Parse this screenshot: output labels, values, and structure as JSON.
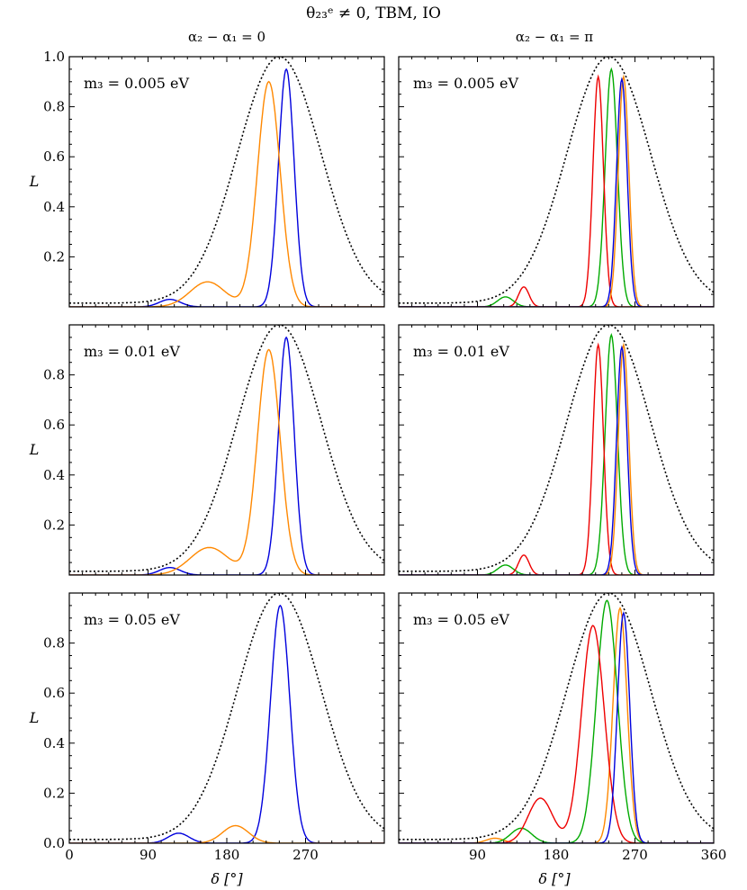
{
  "header": {
    "title": "θ₂₃ᵉ ≠ 0, TBM, IO",
    "col_titles": [
      "α₂ − α₁ = 0",
      "α₂ − α₁ = π"
    ]
  },
  "axes": {
    "xlabel": "δ [°]",
    "ylabel": "L"
  },
  "colors": {
    "envelope": "#000000",
    "blue": "#0000dd",
    "orange": "#ff8800",
    "green": "#00aa00",
    "red": "#ee0000"
  },
  "chart_data": [
    {
      "type": "line",
      "row": 0,
      "col": 0,
      "annotation": "m₃ = 0.005 eV",
      "xlim": [
        0,
        360
      ],
      "ylim": [
        0,
        1
      ],
      "xticks": [],
      "yticks": [
        "0.2",
        "0.4",
        "0.6",
        "0.8",
        "1.0"
      ],
      "series": [
        {
          "color": "blue",
          "peaks": [
            [
              115,
              0.03,
              12
            ],
            [
              248,
              0.95,
              9
            ]
          ]
        },
        {
          "color": "orange",
          "peaks": [
            [
              158,
              0.1,
              20
            ],
            [
              228,
              0.9,
              13
            ]
          ]
        }
      ]
    },
    {
      "type": "line",
      "row": 0,
      "col": 1,
      "annotation": "m₃ = 0.005 eV",
      "xlim": [
        0,
        360
      ],
      "ylim": [
        0,
        1
      ],
      "xticks": [],
      "yticks": [],
      "series": [
        {
          "color": "green",
          "peaks": [
            [
              122,
              0.04,
              9
            ],
            [
              243,
              0.95,
              7
            ]
          ]
        },
        {
          "color": "red",
          "peaks": [
            [
              143,
              0.08,
              6
            ],
            [
              228,
              0.92,
              6
            ]
          ]
        },
        {
          "color": "orange",
          "peaks": [
            [
              257,
              0.92,
              6
            ]
          ]
        },
        {
          "color": "blue",
          "peaks": [
            [
              255,
              0.91,
              6
            ]
          ]
        }
      ]
    },
    {
      "type": "line",
      "row": 1,
      "col": 0,
      "annotation": "m₃ = 0.01 eV",
      "xlim": [
        0,
        360
      ],
      "ylim": [
        0,
        1
      ],
      "xticks": [],
      "yticks": [
        "0.2",
        "0.4",
        "0.6",
        "0.8"
      ],
      "series": [
        {
          "color": "blue",
          "peaks": [
            [
              115,
              0.03,
              12
            ],
            [
              248,
              0.95,
              9
            ]
          ]
        },
        {
          "color": "orange",
          "peaks": [
            [
              160,
              0.11,
              22
            ],
            [
              228,
              0.9,
              13
            ]
          ]
        }
      ]
    },
    {
      "type": "line",
      "row": 1,
      "col": 1,
      "annotation": "m₃ = 0.01 eV",
      "xlim": [
        0,
        360
      ],
      "ylim": [
        0,
        1
      ],
      "xticks": [],
      "yticks": [],
      "series": [
        {
          "color": "green",
          "peaks": [
            [
              122,
              0.04,
              9
            ],
            [
              243,
              0.96,
              7
            ]
          ]
        },
        {
          "color": "red",
          "peaks": [
            [
              143,
              0.08,
              6
            ],
            [
              228,
              0.92,
              6
            ]
          ]
        },
        {
          "color": "orange",
          "peaks": [
            [
              257,
              0.92,
              6
            ]
          ]
        },
        {
          "color": "blue",
          "peaks": [
            [
              255,
              0.91,
              6
            ]
          ]
        }
      ]
    },
    {
      "type": "line",
      "row": 2,
      "col": 0,
      "annotation": "m₃ = 0.05 eV",
      "xlim": [
        0,
        360
      ],
      "ylim": [
        0,
        1
      ],
      "xticks": [
        "0",
        "90",
        "180",
        "270"
      ],
      "yticks": [
        "0.0",
        "0.2",
        "0.4",
        "0.6",
        "0.8"
      ],
      "series": [
        {
          "color": "blue",
          "peaks": [
            [
              125,
              0.04,
              12
            ],
            [
              241,
              0.95,
              11
            ]
          ]
        },
        {
          "color": "orange",
          "peaks": [
            [
              190,
              0.07,
              15
            ]
          ]
        }
      ]
    },
    {
      "type": "line",
      "row": 2,
      "col": 1,
      "annotation": "m₃ = 0.05 eV",
      "xlim": [
        0,
        360
      ],
      "ylim": [
        0,
        1
      ],
      "xticks": [
        "90",
        "180",
        "270",
        "360"
      ],
      "yticks": [],
      "series": [
        {
          "color": "orange",
          "peaks": [
            [
              110,
              0.02,
              10
            ],
            [
              253,
              0.94,
              8
            ]
          ]
        },
        {
          "color": "green",
          "peaks": [
            [
              140,
              0.06,
              12
            ],
            [
              238,
              0.97,
              12
            ]
          ]
        },
        {
          "color": "red",
          "peaks": [
            [
              162,
              0.18,
              14
            ],
            [
              222,
              0.87,
              13
            ]
          ]
        },
        {
          "color": "blue",
          "peaks": [
            [
              257,
              0.92,
              7
            ]
          ]
        }
      ]
    }
  ]
}
